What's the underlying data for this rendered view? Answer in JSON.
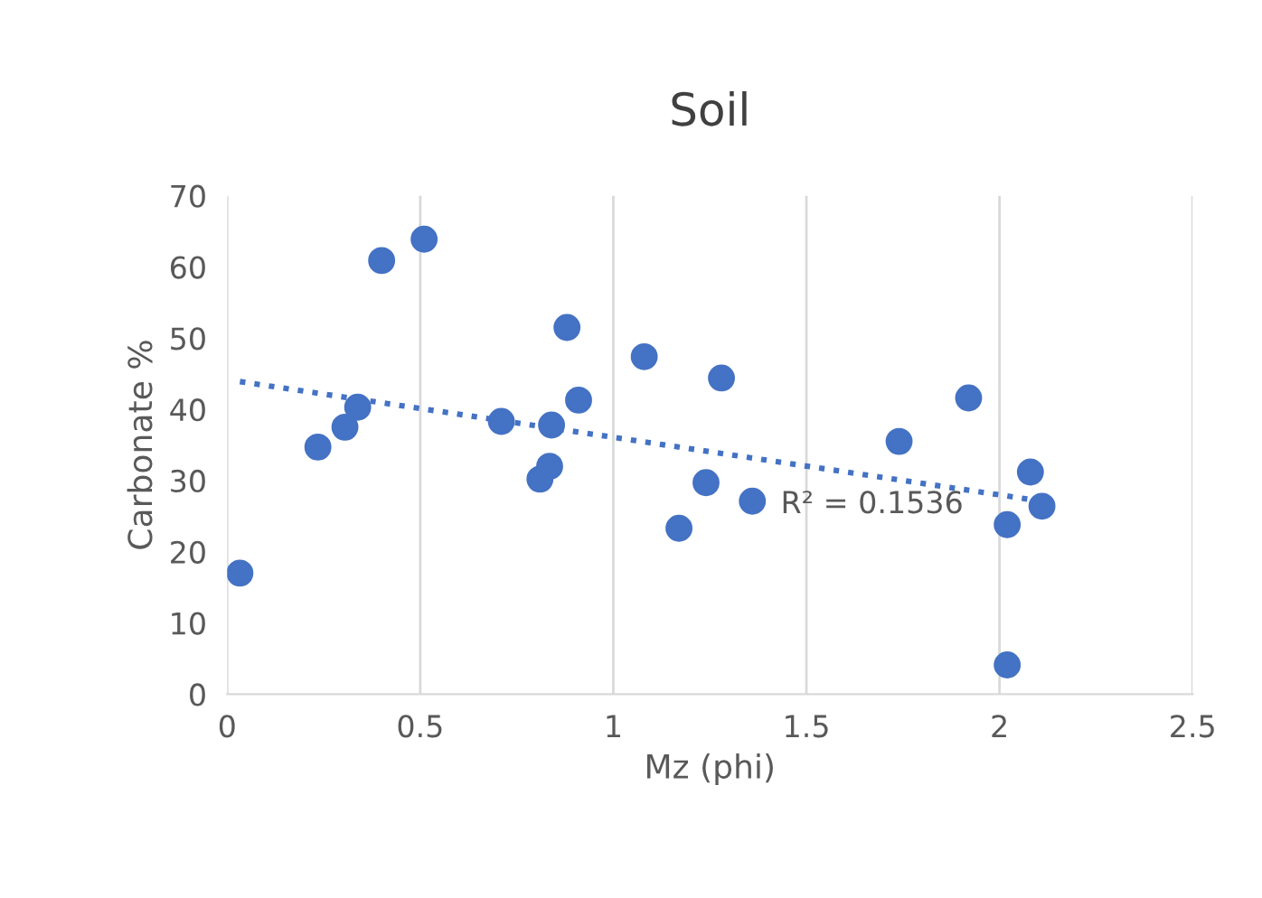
{
  "chart_data": {
    "type": "scatter",
    "title": "Soil",
    "xlabel": "Mz (phi)",
    "ylabel": "Carbonate %",
    "xlim": [
      0,
      2.5
    ],
    "xticks": [
      0,
      0.5,
      1,
      1.5,
      2,
      2.5
    ],
    "ylim": [
      0,
      70
    ],
    "yticks": [
      0,
      10,
      20,
      30,
      40,
      50,
      60,
      70
    ],
    "grid": "x",
    "marker": "circle",
    "legend": false,
    "series": [
      {
        "color": "#4472c4",
        "x": [
          0.033,
          0.235,
          0.305,
          0.338,
          0.4,
          0.51,
          0.71,
          0.81,
          0.835,
          0.84,
          0.88,
          0.91,
          1.08,
          1.17,
          1.24,
          1.28,
          1.36,
          1.74,
          1.92,
          2.02,
          2.02,
          2.08,
          2.11
        ],
        "values": [
          17.0,
          34.7,
          37.5,
          40.3,
          60.9,
          63.9,
          38.3,
          30.2,
          32.0,
          37.8,
          51.5,
          41.3,
          47.4,
          23.3,
          29.7,
          44.4,
          27.1,
          35.5,
          41.6,
          23.8,
          4.1,
          31.2,
          26.4
        ]
      },
      {
        "type": "line",
        "color": "#4472c4",
        "line_style": "dotted",
        "marker": "none",
        "x": [
          0.033,
          2.11
        ],
        "values": [
          43.9,
          27.1
        ]
      }
    ],
    "annotations": [
      "R² = 0.1536"
    ]
  }
}
